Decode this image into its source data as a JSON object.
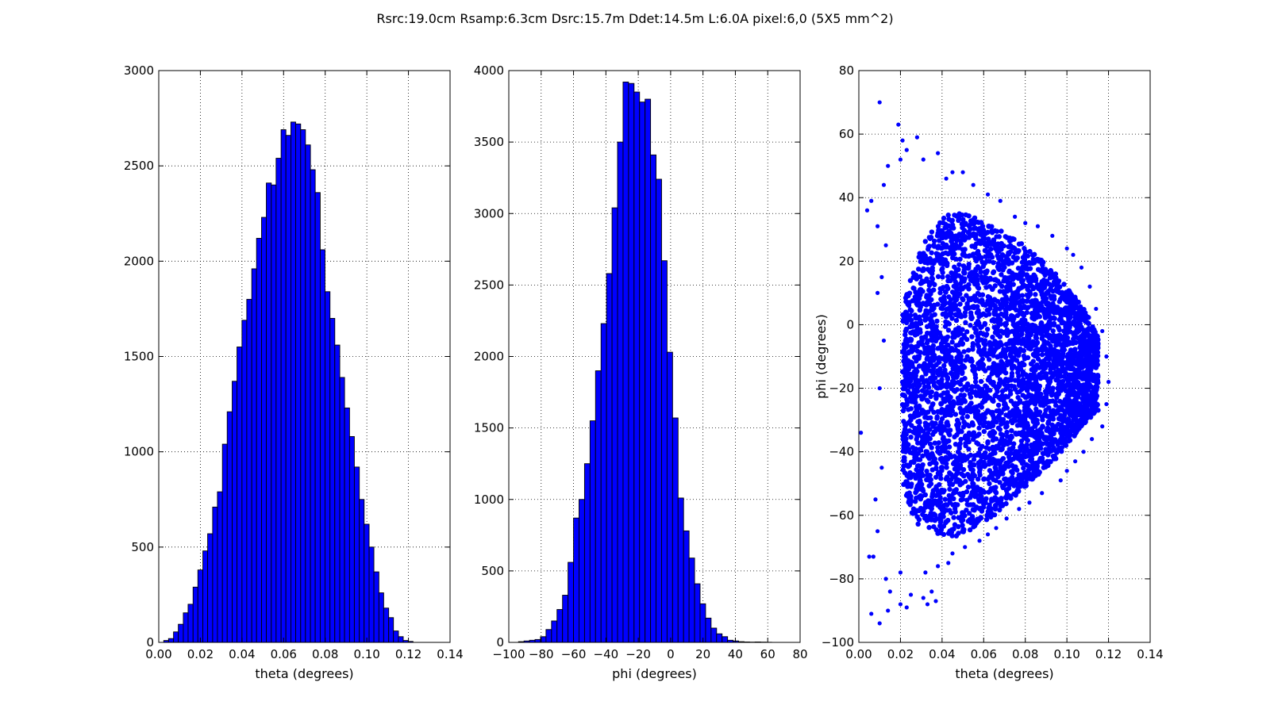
{
  "figure": {
    "title": "Rsrc:19.0cm Rsamp:6.3cm Dsrc:15.7m Ddet:14.5m L:6.0A pixel:6,0 (5X5 mm^2)"
  },
  "colors": {
    "bar_fill": "#0000ff",
    "scatter_point": "#0000ff",
    "edge": "#000000",
    "grid": "#000000"
  },
  "chart_data": [
    {
      "type": "bar",
      "xlabel": "theta (degrees)",
      "ylabel": "",
      "xlim": [
        0.0,
        0.14
      ],
      "ylim": [
        0,
        3000
      ],
      "xticks": [
        "0.00",
        "0.02",
        "0.04",
        "0.06",
        "0.08",
        "0.10",
        "0.12",
        "0.14"
      ],
      "yticks": [
        "0",
        "500",
        "1000",
        "1500",
        "2000",
        "2500",
        "3000"
      ],
      "grid": true,
      "bin_edges": [
        0.0024,
        0.0047,
        0.0071,
        0.0094,
        0.0118,
        0.0141,
        0.0165,
        0.0188,
        0.0212,
        0.0235,
        0.0259,
        0.0282,
        0.0306,
        0.0329,
        0.0353,
        0.0376,
        0.04,
        0.0423,
        0.0447,
        0.047,
        0.0494,
        0.0517,
        0.0541,
        0.0564,
        0.0588,
        0.0611,
        0.0635,
        0.0658,
        0.0682,
        0.0705,
        0.0729,
        0.0752,
        0.0776,
        0.0799,
        0.0823,
        0.0846,
        0.087,
        0.0893,
        0.0917,
        0.094,
        0.0964,
        0.0987,
        0.1011,
        0.1034,
        0.1058,
        0.1081,
        0.1105,
        0.1128,
        0.1152,
        0.1175,
        0.1199,
        0.1222
      ],
      "values": [
        10,
        20,
        55,
        95,
        155,
        200,
        290,
        380,
        480,
        570,
        710,
        790,
        1040,
        1210,
        1370,
        1550,
        1690,
        1800,
        1960,
        2120,
        2230,
        2410,
        2400,
        2540,
        2690,
        2660,
        2730,
        2720,
        2690,
        2610,
        2480,
        2360,
        2060,
        1840,
        1700,
        1560,
        1390,
        1230,
        1080,
        920,
        750,
        620,
        500,
        370,
        260,
        180,
        130,
        60,
        30,
        10,
        5
      ]
    },
    {
      "type": "bar",
      "xlabel": "phi (degrees)",
      "ylabel": "",
      "xlim": [
        -100,
        80
      ],
      "ylim": [
        0,
        4000
      ],
      "xticks": [
        "−100",
        "−80",
        "−60",
        "−40",
        "−20",
        "0",
        "20",
        "40",
        "60",
        "80"
      ],
      "yticks": [
        "0",
        "500",
        "1000",
        "1500",
        "2000",
        "2500",
        "3000",
        "3500",
        "4000"
      ],
      "grid": true,
      "bin_edges": [
        -94.0,
        -90.6,
        -87.2,
        -83.8,
        -80.4,
        -77.0,
        -73.6,
        -70.2,
        -66.8,
        -63.4,
        -60.0,
        -56.6,
        -53.2,
        -49.8,
        -46.4,
        -43.0,
        -39.6,
        -36.2,
        -32.8,
        -29.4,
        -26.0,
        -22.6,
        -19.2,
        -15.8,
        -12.4,
        -9.0,
        -5.6,
        -2.2,
        1.2,
        4.6,
        8.0,
        11.4,
        14.8,
        18.2,
        21.6,
        25.0,
        28.4,
        31.8,
        35.2,
        38.6,
        42.0,
        45.4,
        48.8,
        52.2,
        55.6,
        59.0,
        62.4,
        65.8,
        69.2,
        72.6,
        76.0
      ],
      "values": [
        5,
        10,
        15,
        20,
        40,
        90,
        150,
        230,
        330,
        560,
        870,
        1000,
        1250,
        1550,
        1900,
        2230,
        2580,
        3040,
        3500,
        3920,
        3910,
        3850,
        3780,
        3800,
        3410,
        3240,
        2670,
        2030,
        1570,
        1010,
        780,
        590,
        410,
        270,
        170,
        100,
        60,
        40,
        15,
        10,
        5,
        3,
        2,
        3,
        2,
        1,
        0,
        0,
        0,
        0
      ]
    },
    {
      "type": "scatter",
      "xlabel": "theta (degrees)",
      "ylabel": "phi (degrees)",
      "xlim": [
        0.0,
        0.14
      ],
      "ylim": [
        -100,
        80
      ],
      "xticks": [
        "0.00",
        "0.02",
        "0.04",
        "0.06",
        "0.08",
        "0.10",
        "0.12",
        "0.14"
      ],
      "yticks": [
        "−100",
        "−80",
        "−60",
        "−40",
        "−20",
        "0",
        "20",
        "40",
        "60",
        "80"
      ],
      "grid": true,
      "core_envelope": {
        "x": [
          0.021,
          0.025,
          0.03,
          0.035,
          0.04,
          0.045,
          0.05,
          0.055,
          0.06,
          0.065,
          0.07,
          0.075,
          0.08,
          0.085,
          0.09,
          0.095,
          0.1,
          0.105,
          0.11,
          0.115
        ],
        "y_top": [
          5,
          15,
          24,
          30,
          34,
          35,
          35,
          34,
          33,
          31,
          29,
          27,
          25,
          22,
          19,
          16,
          12,
          8,
          3,
          -4
        ],
        "y_bottom": [
          -50,
          -60,
          -64,
          -66,
          -67,
          -67,
          -66,
          -64,
          -62,
          -60,
          -57,
          -54,
          -51,
          -48,
          -45,
          -42,
          -38,
          -34,
          -30,
          -27
        ]
      },
      "points": [
        [
          0.01,
          70
        ],
        [
          0.019,
          63
        ],
        [
          0.028,
          59
        ],
        [
          0.021,
          58
        ],
        [
          0.023,
          55
        ],
        [
          0.038,
          54
        ],
        [
          0.02,
          52
        ],
        [
          0.031,
          52
        ],
        [
          0.014,
          50
        ],
        [
          0.045,
          48
        ],
        [
          0.05,
          48
        ],
        [
          0.042,
          46
        ],
        [
          0.055,
          44
        ],
        [
          0.012,
          44
        ],
        [
          0.006,
          39
        ],
        [
          0.062,
          41
        ],
        [
          0.068,
          39
        ],
        [
          0.004,
          36
        ],
        [
          0.009,
          31
        ],
        [
          0.075,
          34
        ],
        [
          0.08,
          32
        ],
        [
          0.086,
          31
        ],
        [
          0.093,
          28
        ],
        [
          0.1,
          24
        ],
        [
          0.103,
          22
        ],
        [
          0.107,
          18
        ],
        [
          0.111,
          12
        ],
        [
          0.114,
          5
        ],
        [
          0.117,
          -2
        ],
        [
          0.119,
          -10
        ],
        [
          0.12,
          -18
        ],
        [
          0.119,
          -25
        ],
        [
          0.117,
          -32
        ],
        [
          0.001,
          -34
        ],
        [
          0.112,
          -36
        ],
        [
          0.108,
          -40
        ],
        [
          0.104,
          -43
        ],
        [
          0.1,
          -46
        ],
        [
          0.097,
          -49
        ],
        [
          0.088,
          -53
        ],
        [
          0.082,
          -56
        ],
        [
          0.077,
          -58
        ],
        [
          0.071,
          -61
        ],
        [
          0.066,
          -64
        ],
        [
          0.062,
          -66
        ],
        [
          0.058,
          -68
        ],
        [
          0.051,
          -70
        ],
        [
          0.045,
          -72
        ],
        [
          0.005,
          -73
        ],
        [
          0.007,
          -73
        ],
        [
          0.043,
          -75
        ],
        [
          0.038,
          -76
        ],
        [
          0.032,
          -78
        ],
        [
          0.02,
          -78
        ],
        [
          0.013,
          -80
        ],
        [
          0.015,
          -84
        ],
        [
          0.035,
          -84
        ],
        [
          0.025,
          -85
        ],
        [
          0.031,
          -86
        ],
        [
          0.037,
          -87
        ],
        [
          0.02,
          -88
        ],
        [
          0.033,
          -88
        ],
        [
          0.023,
          -89
        ],
        [
          0.014,
          -90
        ],
        [
          0.006,
          -91
        ],
        [
          0.01,
          -94
        ],
        [
          0.008,
          -55
        ],
        [
          0.009,
          -65
        ],
        [
          0.011,
          -45
        ],
        [
          0.01,
          -20
        ],
        [
          0.012,
          -5
        ],
        [
          0.011,
          15
        ],
        [
          0.013,
          25
        ],
        [
          0.009,
          10
        ]
      ]
    }
  ]
}
